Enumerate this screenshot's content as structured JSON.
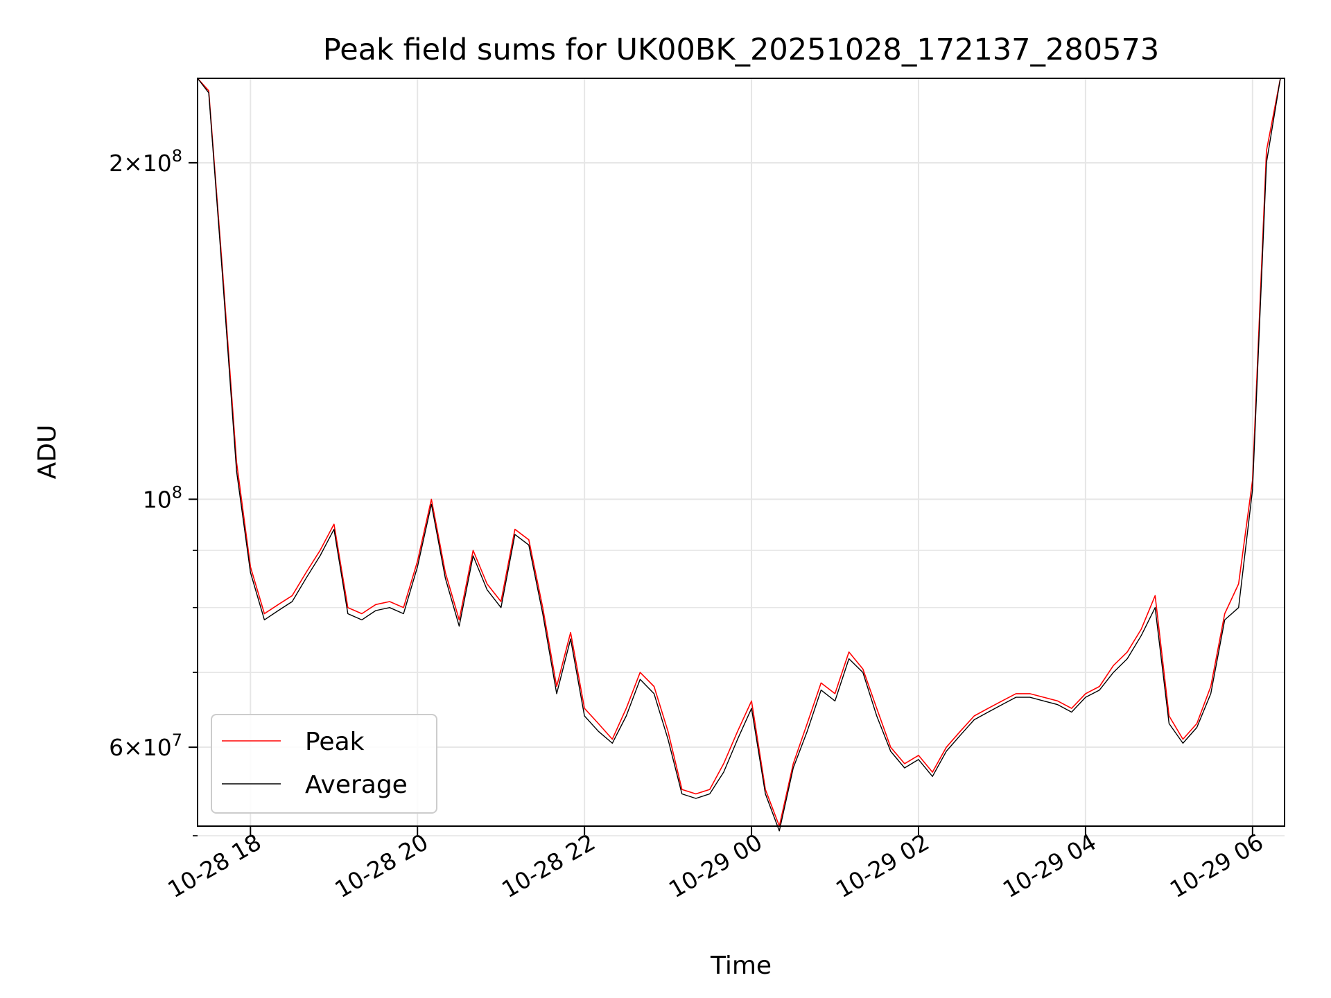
{
  "chart_data": {
    "type": "line",
    "title": "Peak field sums for UK00BK_20251028_172137_280573",
    "xlabel": "Time",
    "ylabel": "ADU",
    "yscale": "log",
    "xlim": [
      "2025-10-28 17:22",
      "2025-10-29 06:23"
    ],
    "ylim": [
      51000000,
      238000000
    ],
    "x_ticks": [
      "10-28 18",
      "10-28 20",
      "10-28 22",
      "10-29 00",
      "10-29 02",
      "10-29 04",
      "10-29 06"
    ],
    "x_tick_values": [
      "2025-10-28 18:00",
      "2025-10-28 20:00",
      "2025-10-28 22:00",
      "2025-10-29 00:00",
      "2025-10-29 02:00",
      "2025-10-29 04:00",
      "2025-10-29 06:00"
    ],
    "y_ticks_major": [
      {
        "value": 200000000,
        "mantissa": "2",
        "exp": "8"
      },
      {
        "value": 100000000,
        "mantissa": "",
        "exp": "8"
      },
      {
        "value": 60000000,
        "mantissa": "6",
        "exp": "7"
      }
    ],
    "y_ticks_minor": [
      90000000,
      80000000,
      70000000,
      50000000
    ],
    "grid": true,
    "legend": "lower-left",
    "x": [
      "2025-10-28 17:22",
      "2025-10-28 17:30",
      "2025-10-28 17:40",
      "2025-10-28 17:50",
      "2025-10-28 18:00",
      "2025-10-28 18:10",
      "2025-10-28 18:20",
      "2025-10-28 18:30",
      "2025-10-28 18:40",
      "2025-10-28 18:50",
      "2025-10-28 19:00",
      "2025-10-28 19:10",
      "2025-10-28 19:20",
      "2025-10-28 19:30",
      "2025-10-28 19:40",
      "2025-10-28 19:50",
      "2025-10-28 20:00",
      "2025-10-28 20:10",
      "2025-10-28 20:20",
      "2025-10-28 20:30",
      "2025-10-28 20:40",
      "2025-10-28 20:50",
      "2025-10-28 21:00",
      "2025-10-28 21:10",
      "2025-10-28 21:20",
      "2025-10-28 21:30",
      "2025-10-28 21:40",
      "2025-10-28 21:50",
      "2025-10-28 22:00",
      "2025-10-28 22:10",
      "2025-10-28 22:20",
      "2025-10-28 22:30",
      "2025-10-28 22:40",
      "2025-10-28 22:50",
      "2025-10-28 23:00",
      "2025-10-28 23:10",
      "2025-10-28 23:20",
      "2025-10-28 23:30",
      "2025-10-28 23:40",
      "2025-10-28 23:50",
      "2025-10-29 00:00",
      "2025-10-29 00:10",
      "2025-10-29 00:20",
      "2025-10-29 00:30",
      "2025-10-29 00:40",
      "2025-10-29 00:50",
      "2025-10-29 01:00",
      "2025-10-29 01:10",
      "2025-10-29 01:20",
      "2025-10-29 01:30",
      "2025-10-29 01:40",
      "2025-10-29 01:50",
      "2025-10-29 02:00",
      "2025-10-29 02:10",
      "2025-10-29 02:20",
      "2025-10-29 02:30",
      "2025-10-29 02:40",
      "2025-10-29 02:50",
      "2025-10-29 03:00",
      "2025-10-29 03:10",
      "2025-10-29 03:20",
      "2025-10-29 03:30",
      "2025-10-29 03:40",
      "2025-10-29 03:50",
      "2025-10-29 04:00",
      "2025-10-29 04:10",
      "2025-10-29 04:20",
      "2025-10-29 04:30",
      "2025-10-29 04:40",
      "2025-10-29 04:50",
      "2025-10-29 05:00",
      "2025-10-29 05:10",
      "2025-10-29 05:20",
      "2025-10-29 05:30",
      "2025-10-29 05:40",
      "2025-10-29 05:50",
      "2025-10-29 06:00",
      "2025-10-29 06:10",
      "2025-10-29 06:20"
    ],
    "series": [
      {
        "name": "Peak",
        "color": "#ff0000",
        "values": [
          238000000,
          232000000,
          160000000,
          108000000,
          87000000,
          79000000,
          80500000,
          82000000,
          86000000,
          90000000,
          95000000,
          80000000,
          79000000,
          80500000,
          81000000,
          80000000,
          88000000,
          100000000,
          86000000,
          78000000,
          90000000,
          84000000,
          81000000,
          94000000,
          92000000,
          80000000,
          68000000,
          76000000,
          65000000,
          63000000,
          61000000,
          65000000,
          70000000,
          68000000,
          62000000,
          55000000,
          54500000,
          55000000,
          58000000,
          62000000,
          66000000,
          55000000,
          51000000,
          58000000,
          63000000,
          68500000,
          67000000,
          73000000,
          70500000,
          65000000,
          60000000,
          58000000,
          59000000,
          57000000,
          60000000,
          62000000,
          64000000,
          65000000,
          66000000,
          67000000,
          67000000,
          66500000,
          66000000,
          65000000,
          67000000,
          68000000,
          71000000,
          73000000,
          76500000,
          82000000,
          64000000,
          61000000,
          63000000,
          68000000,
          79000000,
          84000000,
          104000000,
          205000000,
          238000000
        ]
      },
      {
        "name": "Average",
        "color": "#000000",
        "values": [
          238000000,
          231000000,
          158000000,
          106000000,
          86000000,
          78000000,
          79500000,
          81000000,
          85000000,
          89000000,
          94000000,
          79000000,
          78000000,
          79500000,
          80000000,
          79000000,
          87000000,
          99000000,
          85000000,
          77000000,
          89000000,
          83000000,
          80000000,
          93000000,
          91000000,
          79000000,
          67000000,
          75000000,
          64000000,
          62000000,
          60500000,
          64000000,
          69000000,
          67000000,
          61000000,
          54500000,
          54000000,
          54500000,
          57000000,
          61000000,
          65000000,
          54500000,
          50500000,
          57500000,
          62000000,
          67500000,
          66000000,
          72000000,
          70000000,
          64000000,
          59500000,
          57500000,
          58500000,
          56500000,
          59500000,
          61500000,
          63500000,
          64500000,
          65500000,
          66500000,
          66500000,
          66000000,
          65500000,
          64500000,
          66500000,
          67500000,
          70000000,
          72000000,
          75500000,
          80000000,
          63000000,
          60500000,
          62500000,
          67000000,
          78000000,
          80000000,
          102000000,
          200000000,
          238000000
        ]
      }
    ]
  }
}
